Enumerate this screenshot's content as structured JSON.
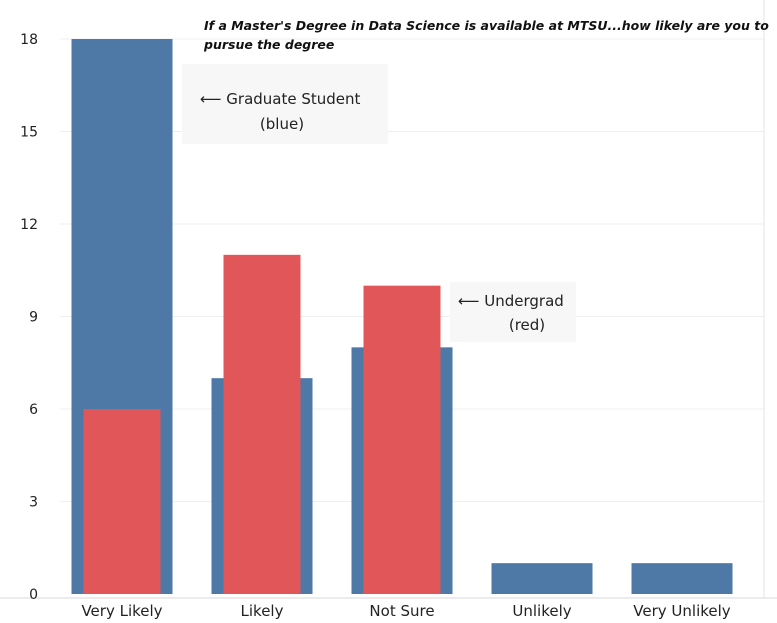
{
  "chart_data": {
    "type": "bar",
    "title_lines": [
      "If a Master's Degree in Data Science is available at MTSU...how likely are you to",
      "pursue the degree"
    ],
    "categories": [
      "Very Likely",
      "Likely",
      "Not Sure",
      "Unlikely",
      "Very Unlikely"
    ],
    "series": [
      {
        "values": [
          18,
          7,
          8,
          1,
          1
        ],
        "color": "#4e79a7"
      },
      {
        "values": [
          6,
          11,
          10,
          0,
          0
        ],
        "color": "#e15759"
      }
    ],
    "y_ticks": [
      0,
      3,
      6,
      9,
      12,
      15,
      18
    ],
    "ylim": [
      0,
      18
    ],
    "grid": true,
    "annotations": [
      {
        "lines": [
          "⟵ Graduate Student",
          "(blue)"
        ],
        "placement": "right of Very Likely bar, near top"
      },
      {
        "lines": [
          "⟵ Undergrad",
          "(red)"
        ],
        "placement": "right of Not Sure bar"
      }
    ]
  }
}
